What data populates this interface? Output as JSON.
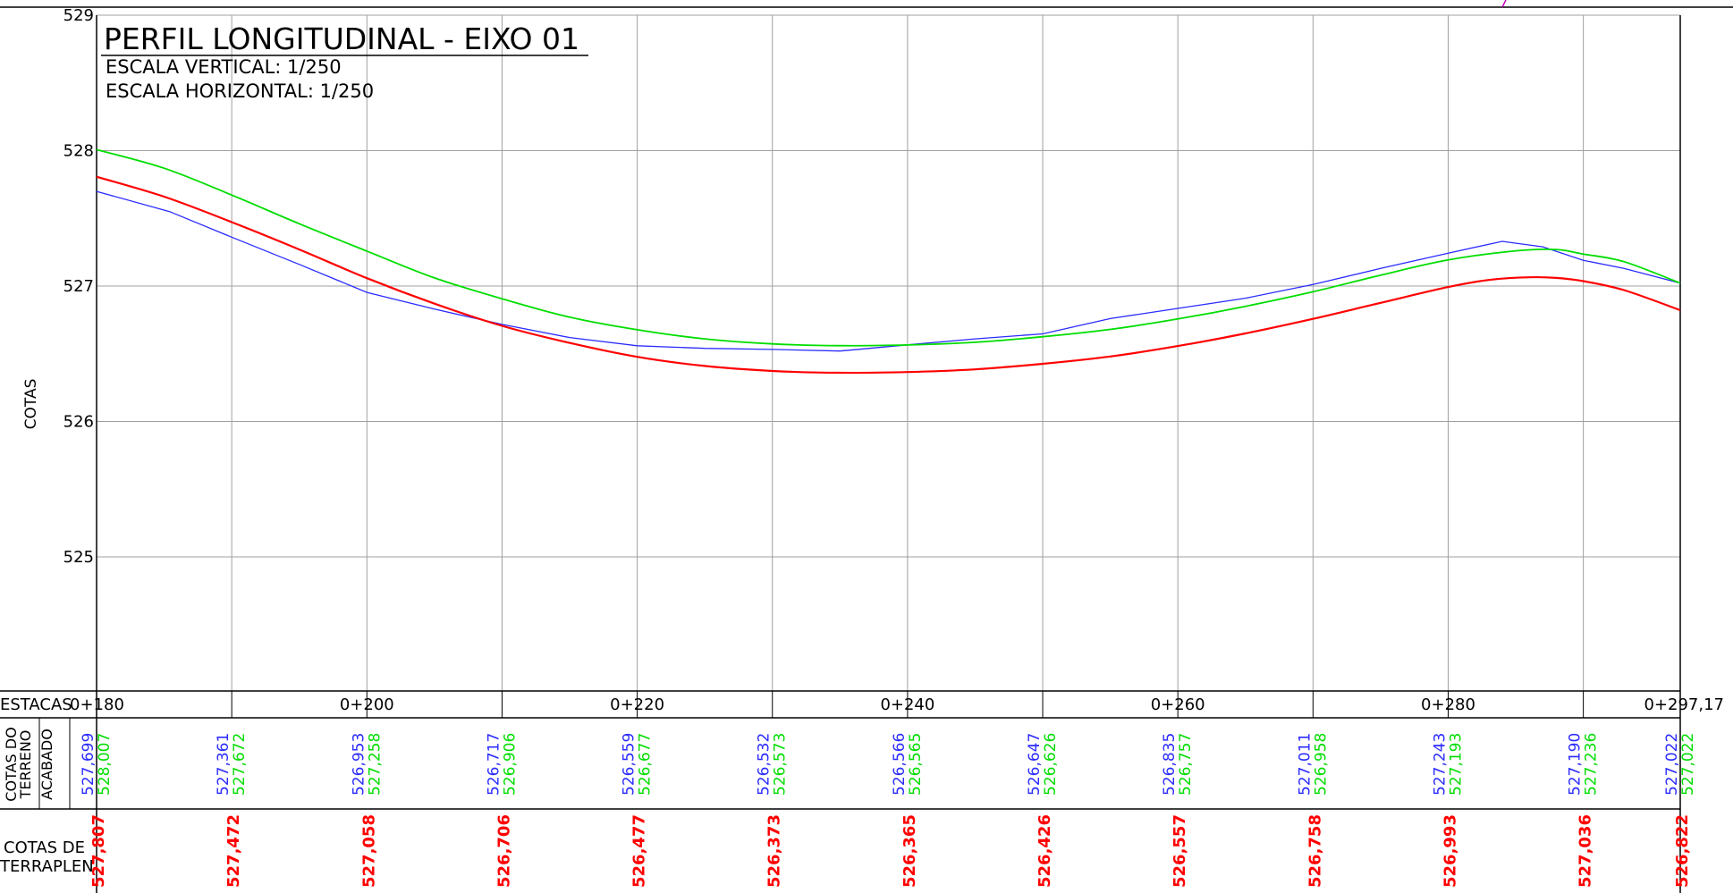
{
  "title": "PERFIL LONGITUDINAL - EIXO 01",
  "scale_vertical": "ESCALA VERTICAL: 1/250",
  "scale_horizontal": "ESCALA HORIZONTAL: 1/250",
  "ylabel": "COTAS",
  "row_labels": {
    "estacas": "ESTACAS",
    "cotas_do": "COTAS DO",
    "terreno": "TERRENO",
    "acabado": "ACABADO",
    "cotas_de": "COTAS DE",
    "terraplen": "TERRAPLEN"
  },
  "colors": {
    "terreno": "#2b2bff",
    "acabado": "#00dd00",
    "terraplen": "#ff0000",
    "grid": "#a0a0a0",
    "frame": "#000000"
  },
  "chart_data": {
    "type": "line",
    "title": "PERFIL LONGITUDINAL - EIXO 01",
    "ylabel": "COTAS",
    "xlim": [
      180,
      297.17
    ],
    "ylim": [
      524.1,
      529
    ],
    "y_ticks": [
      "529",
      "528",
      "527",
      "526",
      "525"
    ],
    "station_labels": [
      {
        "x": 180,
        "label": "0+180"
      },
      {
        "x": 200,
        "label": "0+200"
      },
      {
        "x": 220,
        "label": "0+220"
      },
      {
        "x": 240,
        "label": "0+240"
      },
      {
        "x": 260,
        "label": "0+260"
      },
      {
        "x": 280,
        "label": "0+280"
      },
      {
        "x": 297.17,
        "label": "0+297,17"
      }
    ],
    "station_x": [
      180,
      190,
      200,
      210,
      220,
      230,
      240,
      250,
      260,
      270,
      280,
      290,
      297.17
    ],
    "cotas_terreno_labels": [
      "527,699",
      "527,361",
      "526,953",
      "526,717",
      "526,559",
      "526,532",
      "526,566",
      "526,647",
      "526,835",
      "527,011",
      "527,243",
      "527,190",
      "527,022"
    ],
    "cotas_acabado_labels": [
      "528,007",
      "527,672",
      "527,258",
      "526,906",
      "526,677",
      "526,573",
      "526,565",
      "526,626",
      "526,757",
      "526,958",
      "527,193",
      "527,236",
      "527,022"
    ],
    "cotas_terraplen_labels": [
      "527,807",
      "527,472",
      "527,058",
      "526,706",
      "526,477",
      "526,373",
      "526,365",
      "526,426",
      "526,557",
      "526,758",
      "526,993",
      "527,036",
      "526,822"
    ],
    "grid": true,
    "series": [
      {
        "key": "terreno",
        "x": [
          180,
          185.4,
          190,
          195,
          200,
          205,
          210,
          215,
          220,
          225,
          230,
          235,
          240,
          245,
          250,
          255,
          260,
          265,
          270,
          275,
          280,
          284,
          287,
          290,
          293,
          297.17
        ],
        "y": [
          527.699,
          527.55,
          527.361,
          527.16,
          526.953,
          526.83,
          526.717,
          526.62,
          526.559,
          526.54,
          526.532,
          526.52,
          526.566,
          526.61,
          526.647,
          526.76,
          526.835,
          526.91,
          527.011,
          527.13,
          527.243,
          527.33,
          527.29,
          527.19,
          527.13,
          527.022
        ]
      },
      {
        "key": "acabado",
        "x": [
          180,
          185,
          190,
          195,
          200,
          205,
          210,
          215,
          220,
          225,
          230,
          235,
          240,
          245,
          250,
          255,
          260,
          265,
          270,
          275,
          280,
          285,
          288,
          290,
          293,
          297.17
        ],
        "y": [
          528.007,
          527.87,
          527.672,
          527.46,
          527.258,
          527.06,
          526.906,
          526.77,
          526.677,
          526.61,
          526.573,
          526.56,
          526.565,
          526.585,
          526.626,
          526.68,
          526.757,
          526.85,
          526.958,
          527.08,
          527.193,
          527.26,
          527.27,
          527.236,
          527.18,
          527.022
        ]
      },
      {
        "key": "terraplen",
        "x": [
          180,
          185,
          190,
          195,
          200,
          205,
          210,
          215,
          220,
          225,
          230,
          235,
          240,
          245,
          250,
          255,
          260,
          265,
          270,
          275,
          280,
          283,
          286,
          288,
          290,
          293,
          297.17
        ],
        "y": [
          527.807,
          527.66,
          527.472,
          527.27,
          527.058,
          526.87,
          526.706,
          526.58,
          526.477,
          526.41,
          526.373,
          526.36,
          526.365,
          526.385,
          526.426,
          526.48,
          526.557,
          526.65,
          526.758,
          526.876,
          526.993,
          527.045,
          527.065,
          527.06,
          527.036,
          526.97,
          526.822
        ]
      }
    ]
  }
}
